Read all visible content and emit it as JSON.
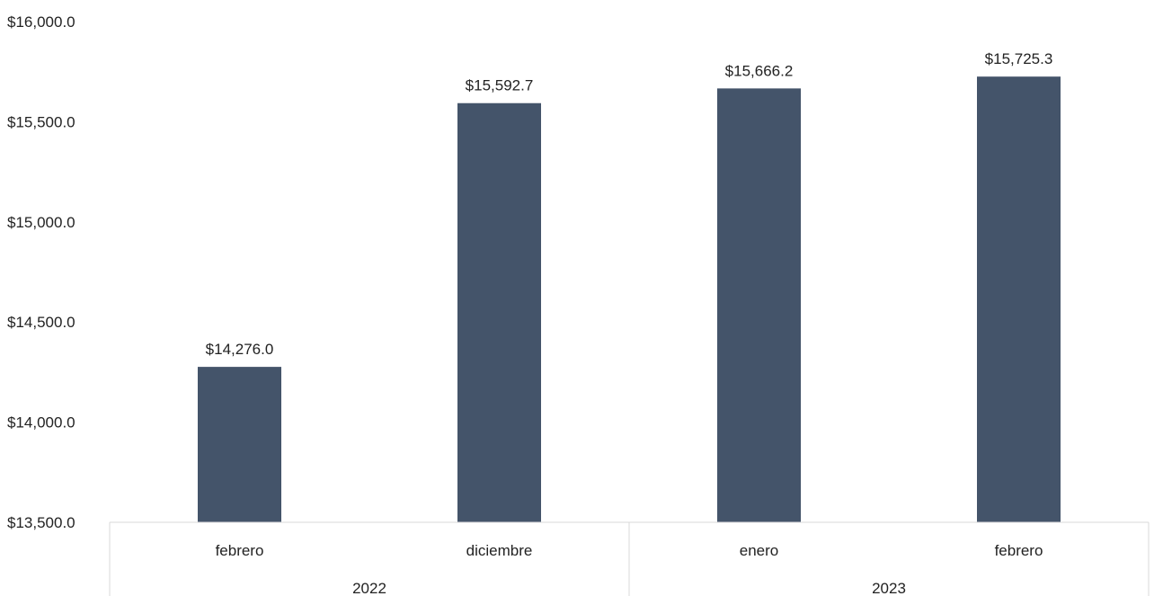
{
  "chart_data": {
    "type": "bar",
    "title": "",
    "xlabel": "",
    "ylabel": "",
    "ylim": [
      13500,
      16000
    ],
    "yticks": [
      13500,
      14000,
      14500,
      15000,
      15500,
      16000
    ],
    "ytick_labels": [
      "$13,500.0",
      "$14,000.0",
      "$14,500.0",
      "$15,000.0",
      "$15,500.0",
      "$16,000.0"
    ],
    "grid": false,
    "legend": "none",
    "bar_color": "#44546a",
    "categories": [
      "febrero",
      "diciembre",
      "enero",
      "febrero"
    ],
    "values": [
      14276.0,
      15592.7,
      15666.2,
      15725.3
    ],
    "data_labels": [
      "$14,276.0",
      "$15,592.7",
      "$15,666.2",
      "$15,725.3"
    ],
    "groups": [
      {
        "label": "2022",
        "categories": [
          0,
          1
        ]
      },
      {
        "label": "2023",
        "categories": [
          2,
          3
        ]
      }
    ]
  }
}
